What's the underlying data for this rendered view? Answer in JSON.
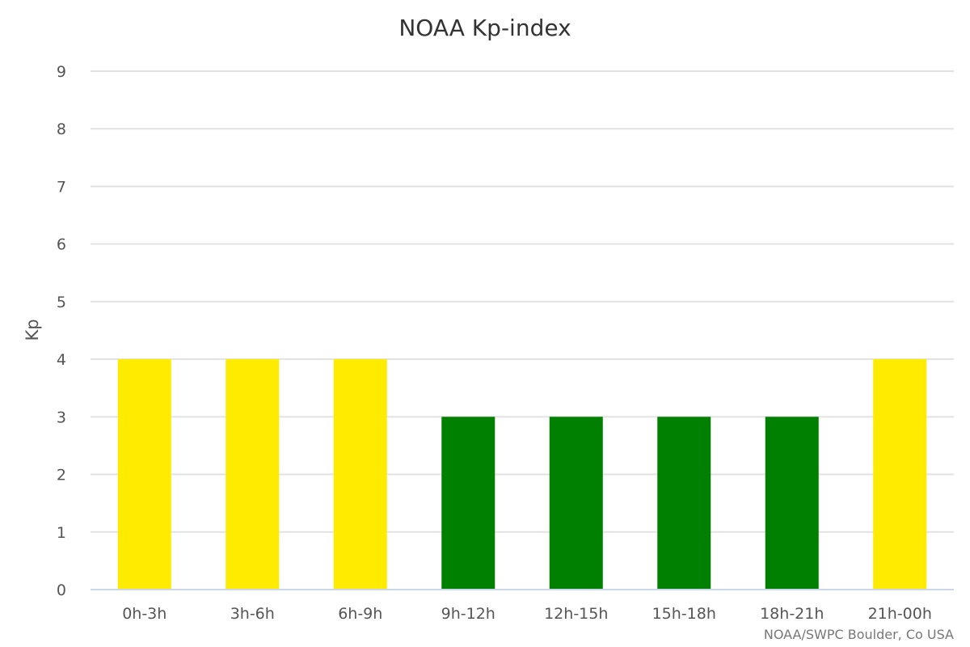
{
  "chart_data": {
    "type": "bar",
    "title": "NOAA Kp-index",
    "xlabel": "",
    "ylabel": "Kp",
    "ylim": [
      0,
      9
    ],
    "yticks": [
      "0",
      "1",
      "2",
      "3",
      "4",
      "5",
      "6",
      "7",
      "8",
      "9"
    ],
    "grid": true,
    "legend": "none",
    "categories": [
      "0h-3h",
      "3h-6h",
      "6h-9h",
      "9h-12h",
      "12h-15h",
      "15h-18h",
      "18h-21h",
      "21h-00h"
    ],
    "values": [
      4,
      4,
      4,
      3,
      3,
      3,
      3,
      4
    ],
    "bar_colors": [
      "#ffeb00",
      "#ffeb00",
      "#ffeb00",
      "#008000",
      "#008000",
      "#008000",
      "#008000",
      "#ffeb00"
    ],
    "credit": "NOAA/SWPC Boulder, Co USA"
  }
}
